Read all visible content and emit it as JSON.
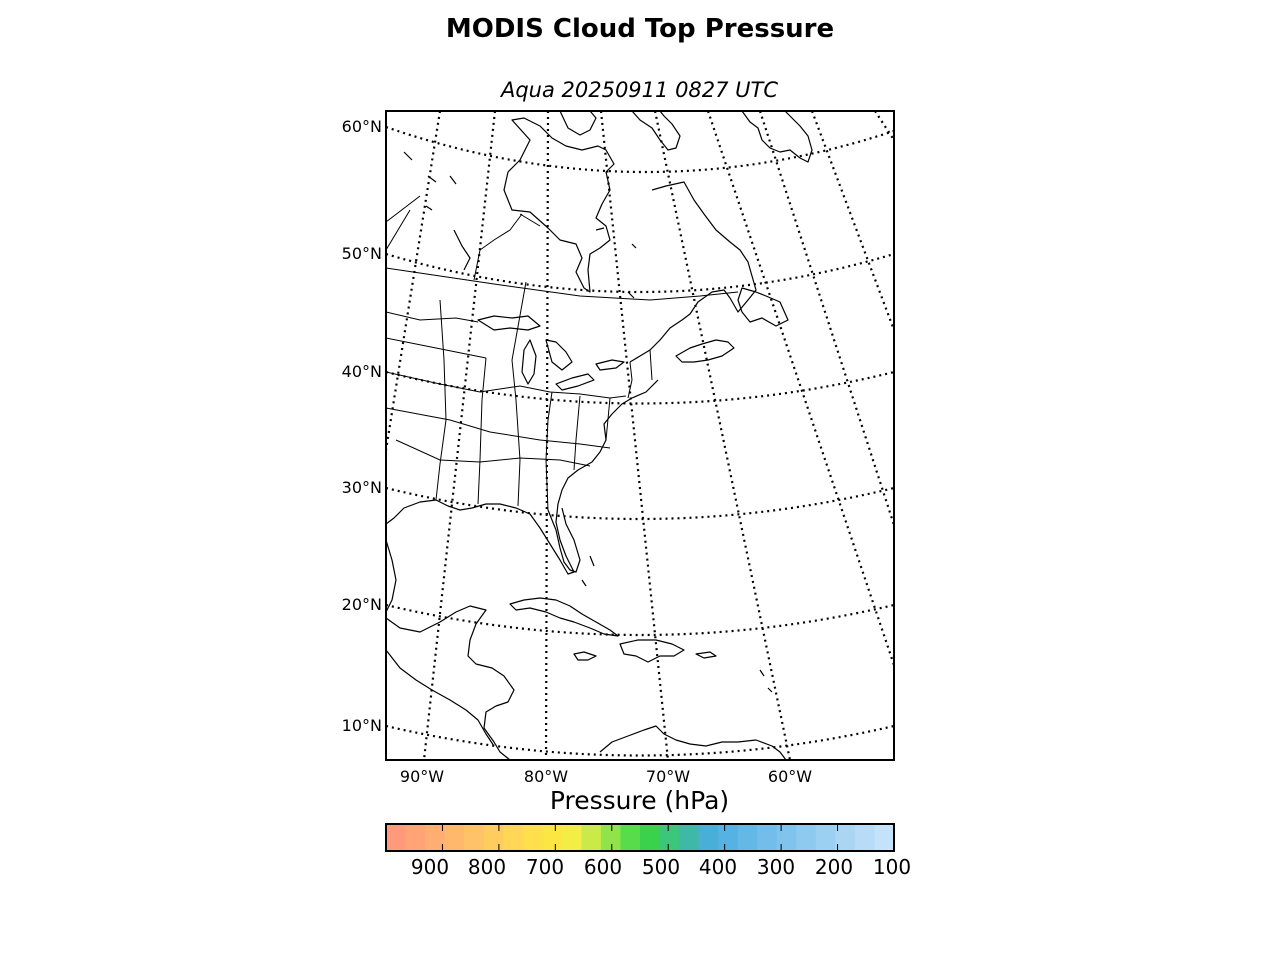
{
  "header": {
    "title": "MODIS Cloud Top Pressure",
    "subtitle": "Aqua 20250911 0827 UTC"
  },
  "map": {
    "projection": "polar stereographic, Atlantic / Eastern North America view",
    "background_color": "#ffffff",
    "coastline_color": "#000000",
    "graticule_style": "dotted",
    "lat_labels": [
      "60°N",
      "50°N",
      "40°N",
      "30°N",
      "20°N",
      "10°N"
    ],
    "lon_labels": [
      "90°W",
      "80°W",
      "70°W",
      "60°W"
    ],
    "cloud_data_visible": false
  },
  "colorbar": {
    "title": "Pressure (hPa)",
    "tick_labels": [
      "900",
      "800",
      "700",
      "600",
      "500",
      "400",
      "300",
      "200",
      "100"
    ],
    "range_hpa": [
      1000,
      100
    ],
    "colors": [
      "#ff9a7a",
      "#ffa476",
      "#ffad72",
      "#ffb86c",
      "#ffc266",
      "#ffcc5e",
      "#ffd656",
      "#ffe04c",
      "#fce644",
      "#f2ee46",
      "#c9ea48",
      "#90e44a",
      "#58dc4c",
      "#3ad24c",
      "#3cc67a",
      "#40b8a8",
      "#4aafd6",
      "#56b2e2",
      "#64b8e6",
      "#72bdea",
      "#80c4ee",
      "#8ecaf0",
      "#9cd0f2",
      "#aad6f4",
      "#b8dcf8",
      "#c4e2fa"
    ]
  }
}
